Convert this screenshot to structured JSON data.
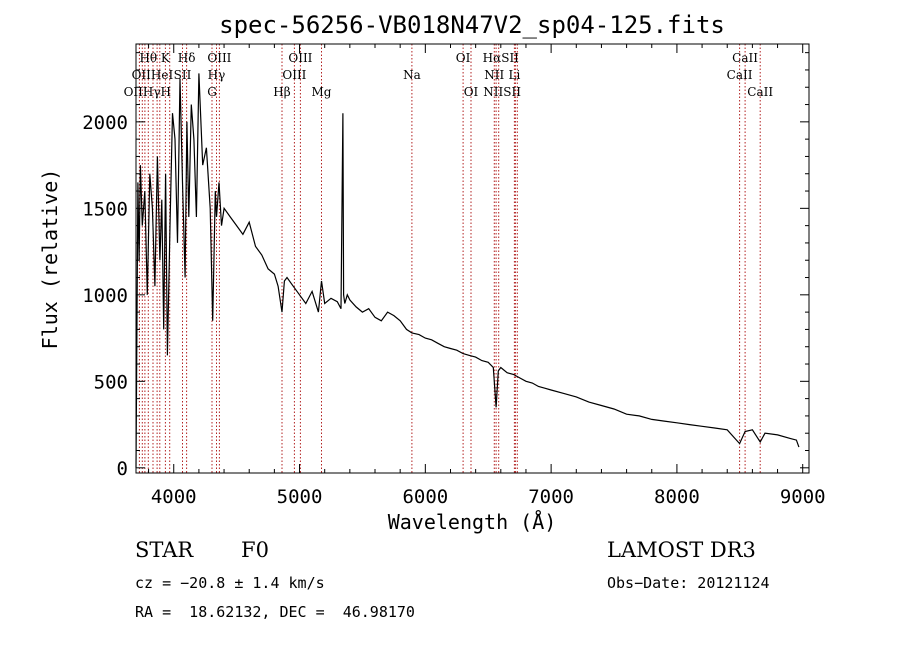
{
  "chart_data": {
    "type": "line",
    "title": "spec-56256-VB018N47V2_sp04-125.fits",
    "xlabel": "Wavelength (Å)",
    "ylabel": "Flux (relative)",
    "xlim": [
      3700,
      9050
    ],
    "ylim": [
      -30,
      2450
    ],
    "x_ticks": [
      4000,
      5000,
      6000,
      7000,
      8000,
      9000
    ],
    "y_ticks": [
      0,
      500,
      1000,
      1500,
      2000
    ],
    "grid": false,
    "series": [
      {
        "name": "flux",
        "x": [
          3700,
          3715,
          3725,
          3735,
          3750,
          3770,
          3790,
          3810,
          3830,
          3850,
          3870,
          3890,
          3905,
          3920,
          3935,
          3950,
          3970,
          3990,
          4010,
          4030,
          4050,
          4070,
          4090,
          4105,
          4120,
          4140,
          4160,
          4180,
          4200,
          4230,
          4260,
          4290,
          4310,
          4330,
          4340,
          4360,
          4380,
          4400,
          4450,
          4500,
          4550,
          4600,
          4650,
          4700,
          4750,
          4800,
          4830,
          4861,
          4880,
          4900,
          4950,
          5000,
          5050,
          5100,
          5150,
          5175,
          5200,
          5250,
          5300,
          5330,
          5345,
          5350,
          5360,
          5380,
          5400,
          5450,
          5500,
          5550,
          5600,
          5650,
          5700,
          5750,
          5800,
          5850,
          5893,
          5950,
          6000,
          6050,
          6100,
          6150,
          6200,
          6250,
          6300,
          6350,
          6400,
          6450,
          6500,
          6540,
          6563,
          6580,
          6600,
          6650,
          6700,
          6750,
          6800,
          6850,
          6900,
          6950,
          7000,
          7100,
          7200,
          7300,
          7400,
          7500,
          7600,
          7700,
          7800,
          7900,
          8000,
          8100,
          8200,
          8300,
          8400,
          8498,
          8542,
          8600,
          8662,
          8700,
          8800,
          8900,
          8950,
          8970
        ],
        "y": [
          0,
          1650,
          1200,
          1750,
          1400,
          1600,
          1000,
          1700,
          1500,
          1050,
          1800,
          1200,
          1550,
          800,
          1700,
          650,
          1400,
          2050,
          1900,
          1300,
          2250,
          1650,
          1100,
          2000,
          1450,
          2100,
          1900,
          1450,
          2280,
          1750,
          1850,
          1500,
          850,
          1600,
          1450,
          1650,
          1400,
          1500,
          1450,
          1400,
          1350,
          1420,
          1280,
          1230,
          1150,
          1120,
          1050,
          900,
          1080,
          1100,
          1050,
          1000,
          950,
          1020,
          900,
          1080,
          950,
          980,
          960,
          920,
          2050,
          1000,
          950,
          1000,
          970,
          930,
          900,
          920,
          870,
          850,
          900,
          880,
          850,
          800,
          780,
          770,
          750,
          740,
          720,
          700,
          690,
          680,
          660,
          650,
          640,
          620,
          610,
          580,
          350,
          560,
          580,
          550,
          540,
          520,
          500,
          490,
          470,
          460,
          450,
          430,
          410,
          380,
          360,
          340,
          310,
          300,
          280,
          270,
          260,
          250,
          240,
          230,
          220,
          140,
          210,
          220,
          150,
          200,
          190,
          170,
          160,
          120
        ]
      }
    ],
    "line_labels": [
      {
        "label": "Hθ",
        "x": 3798,
        "row": 1,
        "serif": true
      },
      {
        "label": "K",
        "x": 3934,
        "row": 1,
        "serif": true
      },
      {
        "label": "Hδ",
        "x": 4102,
        "row": 1,
        "serif": true
      },
      {
        "label": "OIII",
        "x": 4363,
        "row": 1,
        "serif": true
      },
      {
        "label": "OIII",
        "x": 5007,
        "row": 1,
        "serif": true
      },
      {
        "label": "OI",
        "x": 6300,
        "row": 1,
        "serif": true
      },
      {
        "label": "HαSII",
        "x": 6600,
        "row": 1,
        "serif": true
      },
      {
        "label": "CaII",
        "x": 8542,
        "row": 1,
        "serif": true
      },
      {
        "label": "OIIHeI",
        "x": 3830,
        "row": 2,
        "serif": true
      },
      {
        "label": "SII",
        "x": 4070,
        "row": 2,
        "serif": true
      },
      {
        "label": "Hγ",
        "x": 4340,
        "row": 2,
        "serif": true
      },
      {
        "label": "OIII",
        "x": 4959,
        "row": 2,
        "serif": true
      },
      {
        "label": "Na",
        "x": 5893,
        "row": 2,
        "serif": true
      },
      {
        "label": "NII",
        "x": 6548,
        "row": 2,
        "serif": true
      },
      {
        "label": "Li",
        "x": 6708,
        "row": 2,
        "serif": true
      },
      {
        "label": "CaII",
        "x": 8498,
        "row": 2,
        "serif": true
      },
      {
        "label": "OIIHγH",
        "x": 3790,
        "row": 3,
        "serif": true
      },
      {
        "label": "G",
        "x": 4304,
        "row": 3,
        "serif": true
      },
      {
        "label": "Hβ",
        "x": 4861,
        "row": 3,
        "serif": true
      },
      {
        "label": "Mg",
        "x": 5175,
        "row": 3,
        "serif": true
      },
      {
        "label": "OI",
        "x": 6363,
        "row": 3,
        "serif": true
      },
      {
        "label": "NIISII",
        "x": 6610,
        "row": 3,
        "serif": true
      },
      {
        "label": "CaII",
        "x": 8662,
        "row": 3,
        "serif": true
      }
    ],
    "vlines": [
      3727,
      3750,
      3771,
      3798,
      3835,
      3868,
      3889,
      3934,
      3968,
      4070,
      4102,
      4304,
      4340,
      4363,
      4861,
      4959,
      5007,
      5175,
      5893,
      6300,
      6363,
      6548,
      6563,
      6583,
      6708,
      6716,
      6731,
      8498,
      8542,
      8662
    ]
  },
  "info": {
    "object_type": "STAR",
    "subclass": "F0",
    "survey": "LAMOST DR3",
    "cz": "cz = −20.8 ± 1.4 km/s",
    "obs_date": "Obs−Date: 20121124",
    "coords": "RA =  18.62132, DEC =  46.98170"
  }
}
